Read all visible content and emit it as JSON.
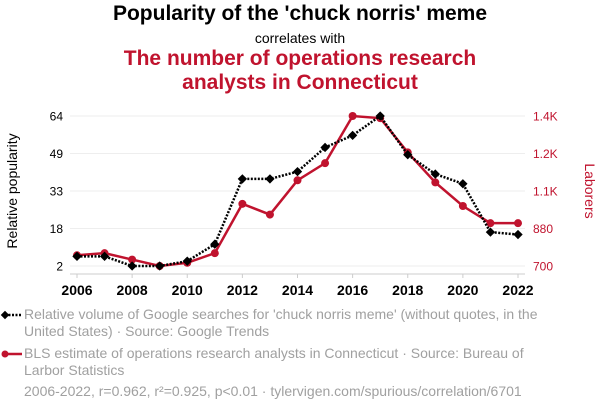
{
  "chart_data": {
    "type": "line",
    "title": "Popularity of the 'chuck norris' meme",
    "subtitle": "correlates with",
    "title2": "The number of operations research analysts in Connecticut",
    "x": [
      2006,
      2007,
      2008,
      2009,
      2010,
      2011,
      2012,
      2013,
      2014,
      2015,
      2016,
      2017,
      2018,
      2019,
      2020,
      2021,
      2022
    ],
    "x_ticks": [
      "2006",
      "2008",
      "2010",
      "2012",
      "2014",
      "2016",
      "2018",
      "2020",
      "2022"
    ],
    "y_left": {
      "label": "Relative popularity",
      "range": [
        2,
        64
      ],
      "ticks": [
        "64",
        "49",
        "33",
        "18",
        "2"
      ],
      "tick_values": [
        64,
        49,
        33,
        18,
        2
      ]
    },
    "y_right": {
      "label": "Laborers",
      "range": [
        700,
        1400
      ],
      "ticks": [
        "1.4K",
        "1.2K",
        "1.1K",
        "880",
        "700"
      ],
      "tick_values": [
        1400,
        1225,
        1050,
        875,
        700
      ]
    },
    "series": [
      {
        "name": "Relative volume of Google searches for 'chuck norris meme' (without quotes, in the United States) · Source: Google Trends",
        "axis": "left",
        "color": "#000000",
        "marker": "diamond",
        "style": "dotted",
        "values": [
          6,
          6,
          2,
          2,
          4,
          11,
          38,
          38,
          41,
          51,
          56,
          64,
          48,
          40,
          36,
          16,
          15
        ]
      },
      {
        "name": "BLS estimate of operations research analysts in Connecticut · Source: Bureau of Larbor Statistics",
        "axis": "right",
        "color": "#c0132e",
        "marker": "circle",
        "style": "solid",
        "values": [
          750,
          760,
          730,
          700,
          715,
          760,
          990,
          940,
          1100,
          1180,
          1400,
          1390,
          1230,
          1090,
          980,
          900,
          900
        ]
      }
    ],
    "footer": "2006-2022, r=0.962, r²=0.925, p<0.01 · tylervigen.com/spurious/correlation/6701",
    "grid": true
  }
}
